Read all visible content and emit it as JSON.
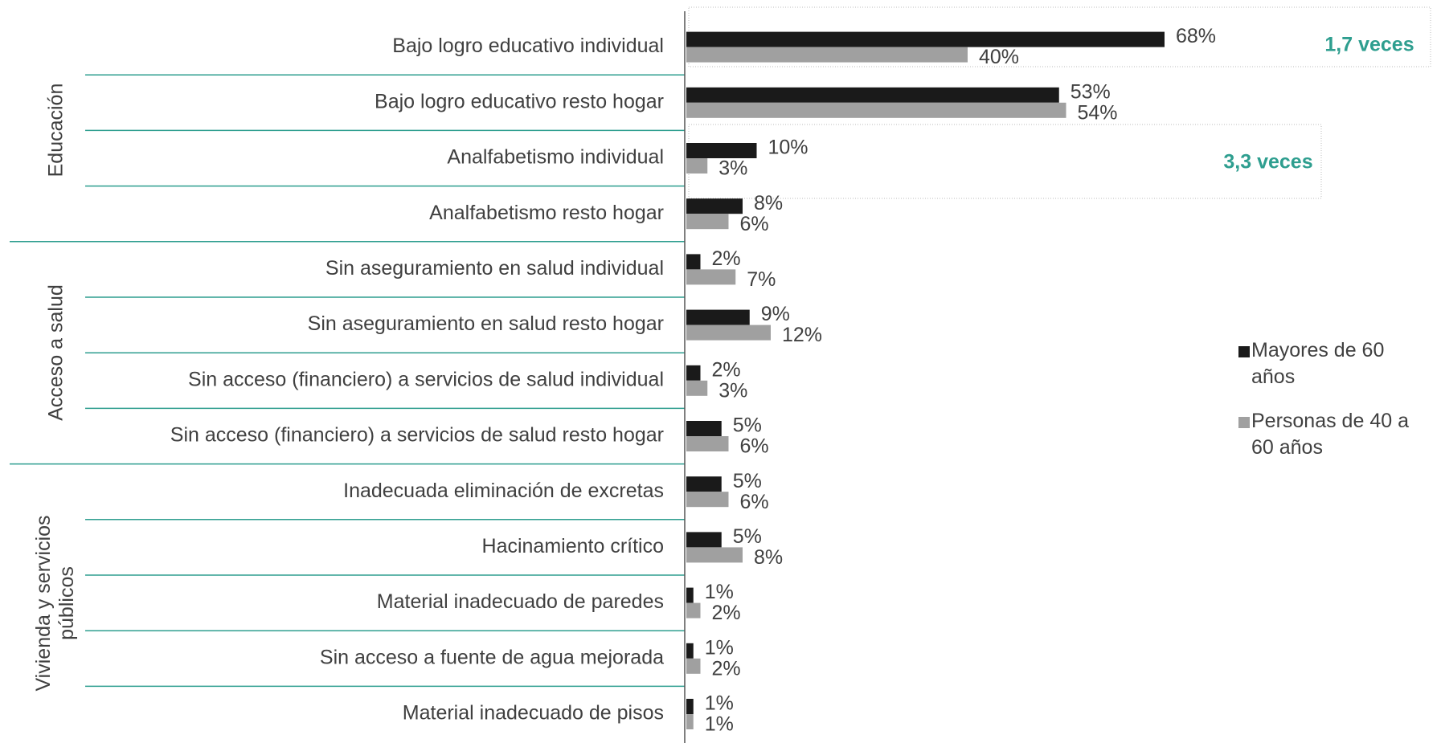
{
  "chart_data": {
    "type": "hbar",
    "categories": [
      "Bajo logro educativo individual",
      "Bajo logro educativo resto hogar",
      "Analfabetismo individual",
      "Analfabetismo resto hogar",
      "Sin aseguramiento en salud individual",
      "Sin aseguramiento en salud resto hogar",
      "Sin acceso (financiero) a servicios de salud individual",
      "Sin acceso (financiero) a servicios de salud resto hogar",
      "Inadecuada eliminación de excretas",
      "Hacinamiento crítico",
      "Material inadecuado de paredes",
      "Sin acceso a fuente de agua mejorada",
      "Material inadecuado de pisos"
    ],
    "groups": [
      {
        "label": "Educación",
        "span": 4
      },
      {
        "label": "Acceso a salud",
        "span": 4
      },
      {
        "label": "Vivienda y servicios públicos",
        "span": 5
      }
    ],
    "series": [
      {
        "name": "Mayores de 60 años",
        "color": "#1a1a1a",
        "values": [
          68,
          53,
          10,
          8,
          2,
          9,
          2,
          5,
          5,
          5,
          1,
          1,
          1
        ],
        "value_labels": [
          "68%",
          "53%",
          "10%",
          "8%",
          "2%",
          "9%",
          "2%",
          "5%",
          "5%",
          "5%",
          "1%",
          "1%",
          "1%"
        ]
      },
      {
        "name": "Personas de 40 a 60 años",
        "color": "#a0a0a0",
        "values": [
          40,
          54,
          3,
          6,
          7,
          12,
          3,
          6,
          6,
          8,
          2,
          2,
          1
        ],
        "value_labels": [
          "40%",
          "54%",
          "3%",
          "6%",
          "7%",
          "12%",
          "3%",
          "6%",
          "6%",
          "8%",
          "2%",
          "2%",
          "1%"
        ]
      }
    ],
    "xlim": [
      0,
      100
    ],
    "annotations": [
      "1,7 veces",
      "3,3 veces"
    ],
    "legend": "right"
  }
}
